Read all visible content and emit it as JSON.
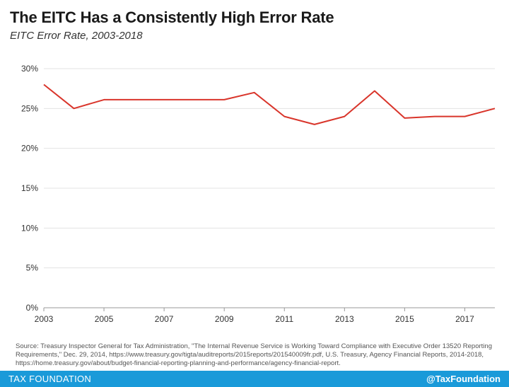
{
  "header": {
    "title": "The EITC Has a Consistently High Error Rate",
    "subtitle": "EITC Error Rate, 2003-2018"
  },
  "chart_data": {
    "type": "line",
    "title": "The EITC Has a Consistently High Error Rate",
    "subtitle": "EITC Error Rate, 2003-2018",
    "xlabel": "",
    "ylabel": "",
    "x": [
      2003,
      2004,
      2005,
      2006,
      2007,
      2008,
      2009,
      2010,
      2011,
      2012,
      2013,
      2014,
      2015,
      2016,
      2017,
      2018
    ],
    "series": [
      {
        "values": [
          28.0,
          25.0,
          26.1,
          26.1,
          26.1,
          26.1,
          26.1,
          27.0,
          24.0,
          23.0,
          24.0,
          27.2,
          23.8,
          24.0,
          24.0,
          25.0
        ]
      }
    ],
    "xticks": [
      "2003",
      "2005",
      "2007",
      "2009",
      "2011",
      "2013",
      "2015",
      "2017"
    ],
    "yticks": [
      "0%",
      "5%",
      "10%",
      "15%",
      "20%",
      "25%",
      "30%"
    ],
    "ylim": [
      0,
      30
    ],
    "xlim": [
      2003,
      2018
    ],
    "grid": true,
    "line_color": "#d9352b"
  },
  "source": {
    "text": "Source: Treasury Inspector General for Tax Administration, \"The Internal Revenue Service is Working Toward Compliance with Executive Order 13520 Reporting Requirements,\" Dec. 29, 2014, https://www.treasury.gov/tigta/auditreports/2015reports/201540009fr.pdf, U.S. Treasury, Agency Financial Reports, 2014-2018, https://home.treasury.gov/about/budget-financial-reporting-planning-and-performance/agency-financial-report."
  },
  "footer": {
    "org": "TAX FOUNDATION",
    "handle": "@TaxFoundation",
    "color": "#1a9ad9"
  }
}
